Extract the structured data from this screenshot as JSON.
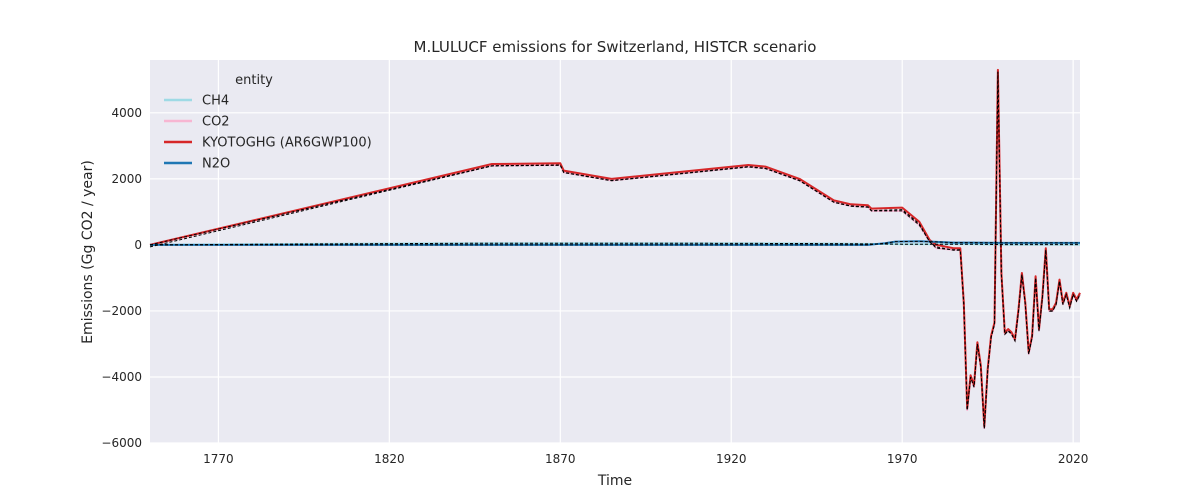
{
  "chart_data": {
    "type": "line",
    "title": "M.LULUCF emissions for Switzerland, HISTCR scenario",
    "xlabel": "Time",
    "ylabel": "Emissions (Gg CO2 / year)",
    "xlim": [
      1750,
      2022
    ],
    "ylim": [
      -6000,
      5600
    ],
    "x_ticks": [
      1770,
      1820,
      1870,
      1920,
      1970,
      2020
    ],
    "y_ticks": [
      -6000,
      -4000,
      -2000,
      0,
      2000,
      4000
    ],
    "grid": true,
    "legend": {
      "title": "entity",
      "placement": "top-left"
    },
    "series": [
      {
        "name": "CH4",
        "color": "#9edae5",
        "points": [
          [
            1750,
            0
          ],
          [
            1800,
            30
          ],
          [
            1850,
            50
          ],
          [
            1900,
            50
          ],
          [
            1950,
            40
          ],
          [
            1970,
            20
          ],
          [
            1990,
            20
          ],
          [
            2000,
            10
          ],
          [
            2022,
            10
          ]
        ]
      },
      {
        "name": "CO2",
        "color": "#f7b6d2",
        "points": [
          [
            1750,
            0
          ],
          [
            1850,
            2400
          ],
          [
            1870,
            2420
          ],
          [
            1871,
            2200
          ],
          [
            1885,
            1950
          ],
          [
            1925,
            2370
          ],
          [
            1930,
            2320
          ],
          [
            1940,
            1950
          ],
          [
            1950,
            1300
          ],
          [
            1955,
            1180
          ],
          [
            1960,
            1150
          ],
          [
            1961,
            1030
          ],
          [
            1970,
            1030
          ],
          [
            1975,
            600
          ],
          [
            1978,
            100
          ],
          [
            1980,
            -100
          ],
          [
            1985,
            -150
          ],
          [
            1987,
            -150
          ],
          [
            1988,
            -1800
          ],
          [
            1989,
            -5000
          ],
          [
            1990,
            -4000
          ],
          [
            1991,
            -4300
          ],
          [
            1992,
            -3000
          ],
          [
            1993,
            -3700
          ],
          [
            1994,
            -5550
          ],
          [
            1995,
            -3800
          ],
          [
            1996,
            -2800
          ],
          [
            1997,
            -2400
          ],
          [
            1998,
            5250
          ],
          [
            1999,
            -900
          ],
          [
            2000,
            -2700
          ],
          [
            2001,
            -2600
          ],
          [
            2002,
            -2700
          ],
          [
            2003,
            -2900
          ],
          [
            2004,
            -2000
          ],
          [
            2005,
            -900
          ],
          [
            2006,
            -1800
          ],
          [
            2007,
            -3300
          ],
          [
            2008,
            -2800
          ],
          [
            2009,
            -1000
          ],
          [
            2010,
            -2600
          ],
          [
            2011,
            -1600
          ],
          [
            2012,
            -150
          ],
          [
            2013,
            -2000
          ],
          [
            2014,
            -2000
          ],
          [
            2015,
            -1800
          ],
          [
            2016,
            -1100
          ],
          [
            2017,
            -1800
          ],
          [
            2018,
            -1500
          ],
          [
            2019,
            -1900
          ],
          [
            2020,
            -1500
          ],
          [
            2021,
            -1700
          ],
          [
            2022,
            -1500
          ]
        ]
      },
      {
        "name": "KYOTOGHG (AR6GWP100)",
        "color": "#d62728",
        "points": [
          [
            1750,
            0
          ],
          [
            1850,
            2450
          ],
          [
            1870,
            2470
          ],
          [
            1871,
            2250
          ],
          [
            1885,
            2000
          ],
          [
            1925,
            2420
          ],
          [
            1930,
            2370
          ],
          [
            1940,
            2000
          ],
          [
            1950,
            1350
          ],
          [
            1955,
            1230
          ],
          [
            1960,
            1200
          ],
          [
            1961,
            1100
          ],
          [
            1970,
            1130
          ],
          [
            1975,
            700
          ],
          [
            1978,
            150
          ],
          [
            1980,
            0
          ],
          [
            1985,
            -100
          ],
          [
            1987,
            -100
          ],
          [
            1988,
            -1750
          ],
          [
            1989,
            -4950
          ],
          [
            1990,
            -3950
          ],
          [
            1991,
            -4250
          ],
          [
            1992,
            -2950
          ],
          [
            1993,
            -3650
          ],
          [
            1994,
            -5500
          ],
          [
            1995,
            -3750
          ],
          [
            1996,
            -2750
          ],
          [
            1997,
            -2350
          ],
          [
            1998,
            5300
          ],
          [
            1999,
            -850
          ],
          [
            2000,
            -2650
          ],
          [
            2001,
            -2550
          ],
          [
            2002,
            -2650
          ],
          [
            2003,
            -2850
          ],
          [
            2004,
            -1950
          ],
          [
            2005,
            -850
          ],
          [
            2006,
            -1750
          ],
          [
            2007,
            -3250
          ],
          [
            2008,
            -2750
          ],
          [
            2009,
            -950
          ],
          [
            2010,
            -2550
          ],
          [
            2011,
            -1550
          ],
          [
            2012,
            -100
          ],
          [
            2013,
            -1950
          ],
          [
            2014,
            -1950
          ],
          [
            2015,
            -1750
          ],
          [
            2016,
            -1050
          ],
          [
            2017,
            -1750
          ],
          [
            2018,
            -1450
          ],
          [
            2019,
            -1850
          ],
          [
            2020,
            -1450
          ],
          [
            2021,
            -1650
          ],
          [
            2022,
            -1450
          ]
        ]
      },
      {
        "name": "N2O",
        "color": "#1f77b4",
        "points": [
          [
            1750,
            0
          ],
          [
            1960,
            0
          ],
          [
            1965,
            50
          ],
          [
            1968,
            100
          ],
          [
            1975,
            110
          ],
          [
            1980,
            90
          ],
          [
            1985,
            70
          ],
          [
            1990,
            70
          ],
          [
            2000,
            60
          ],
          [
            2022,
            60
          ]
        ]
      }
    ]
  }
}
